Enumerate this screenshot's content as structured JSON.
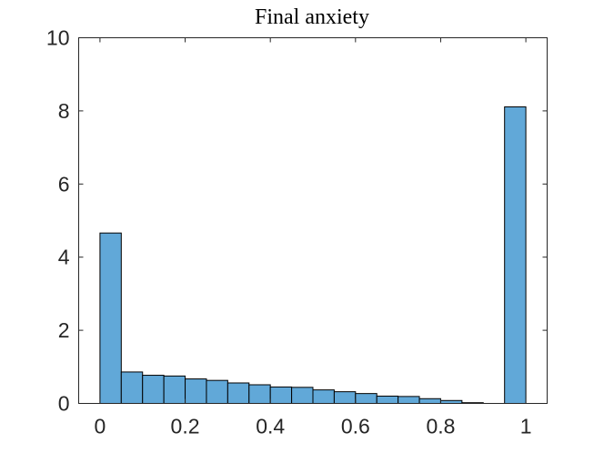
{
  "chart_data": {
    "type": "bar",
    "title": "Final anxiety",
    "xlabel": "",
    "ylabel": "",
    "xlim": [
      -0.05,
      1.05
    ],
    "ylim": [
      0,
      10
    ],
    "xticks": [
      0,
      0.2,
      0.4,
      0.6,
      0.8,
      1
    ],
    "xtick_labels": [
      "0",
      "0.2",
      "0.4",
      "0.6",
      "0.8",
      "1"
    ],
    "yticks": [
      0,
      2,
      4,
      6,
      8,
      10
    ],
    "ytick_labels": [
      "0",
      "2",
      "4",
      "6",
      "8",
      "10"
    ],
    "grid": false,
    "bar_color": "#61a8d8",
    "edge_color": "#000000",
    "bin_width": 0.05,
    "bins": [
      {
        "x0": 0.0,
        "value": 4.66
      },
      {
        "x0": 0.05,
        "value": 0.86
      },
      {
        "x0": 0.1,
        "value": 0.77
      },
      {
        "x0": 0.15,
        "value": 0.75
      },
      {
        "x0": 0.2,
        "value": 0.67
      },
      {
        "x0": 0.25,
        "value": 0.63
      },
      {
        "x0": 0.3,
        "value": 0.56
      },
      {
        "x0": 0.35,
        "value": 0.51
      },
      {
        "x0": 0.4,
        "value": 0.45
      },
      {
        "x0": 0.45,
        "value": 0.44
      },
      {
        "x0": 0.5,
        "value": 0.37
      },
      {
        "x0": 0.55,
        "value": 0.32
      },
      {
        "x0": 0.6,
        "value": 0.27
      },
      {
        "x0": 0.65,
        "value": 0.2
      },
      {
        "x0": 0.7,
        "value": 0.19
      },
      {
        "x0": 0.75,
        "value": 0.13
      },
      {
        "x0": 0.8,
        "value": 0.08
      },
      {
        "x0": 0.85,
        "value": 0.02
      },
      {
        "x0": 0.9,
        "value": 0.0
      },
      {
        "x0": 0.95,
        "value": 8.11
      }
    ]
  }
}
